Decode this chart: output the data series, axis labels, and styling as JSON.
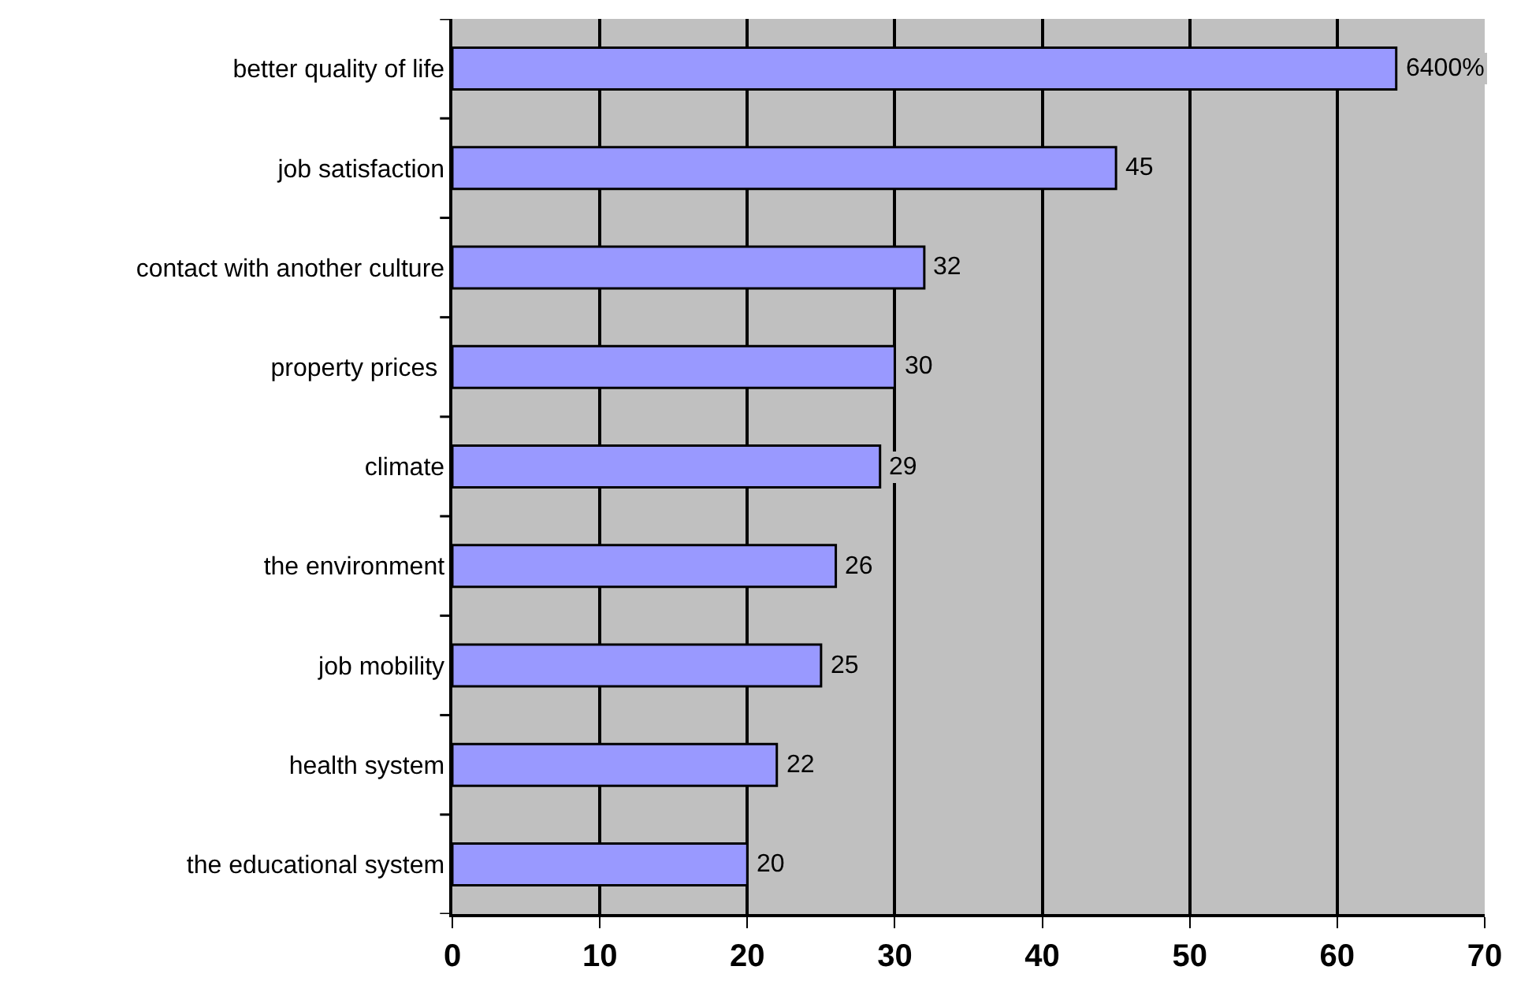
{
  "chart_data": {
    "type": "bar",
    "orientation": "horizontal",
    "categories": [
      "better quality of life",
      "job satisfaction",
      "contact with another culture",
      "property prices ",
      "climate",
      "the environment",
      "job mobility",
      "health system",
      "the educational system"
    ],
    "values": [
      64,
      45,
      32,
      30,
      29,
      26,
      25,
      22,
      20
    ],
    "value_labels": [
      "6400%",
      "45",
      "32",
      "30",
      "29",
      "26",
      "25",
      "22",
      "20"
    ],
    "color": "#9999ff",
    "xlim": [
      0,
      70
    ],
    "xticks": [
      0,
      10,
      20,
      30,
      40,
      50,
      60,
      70
    ],
    "grid": "x"
  }
}
